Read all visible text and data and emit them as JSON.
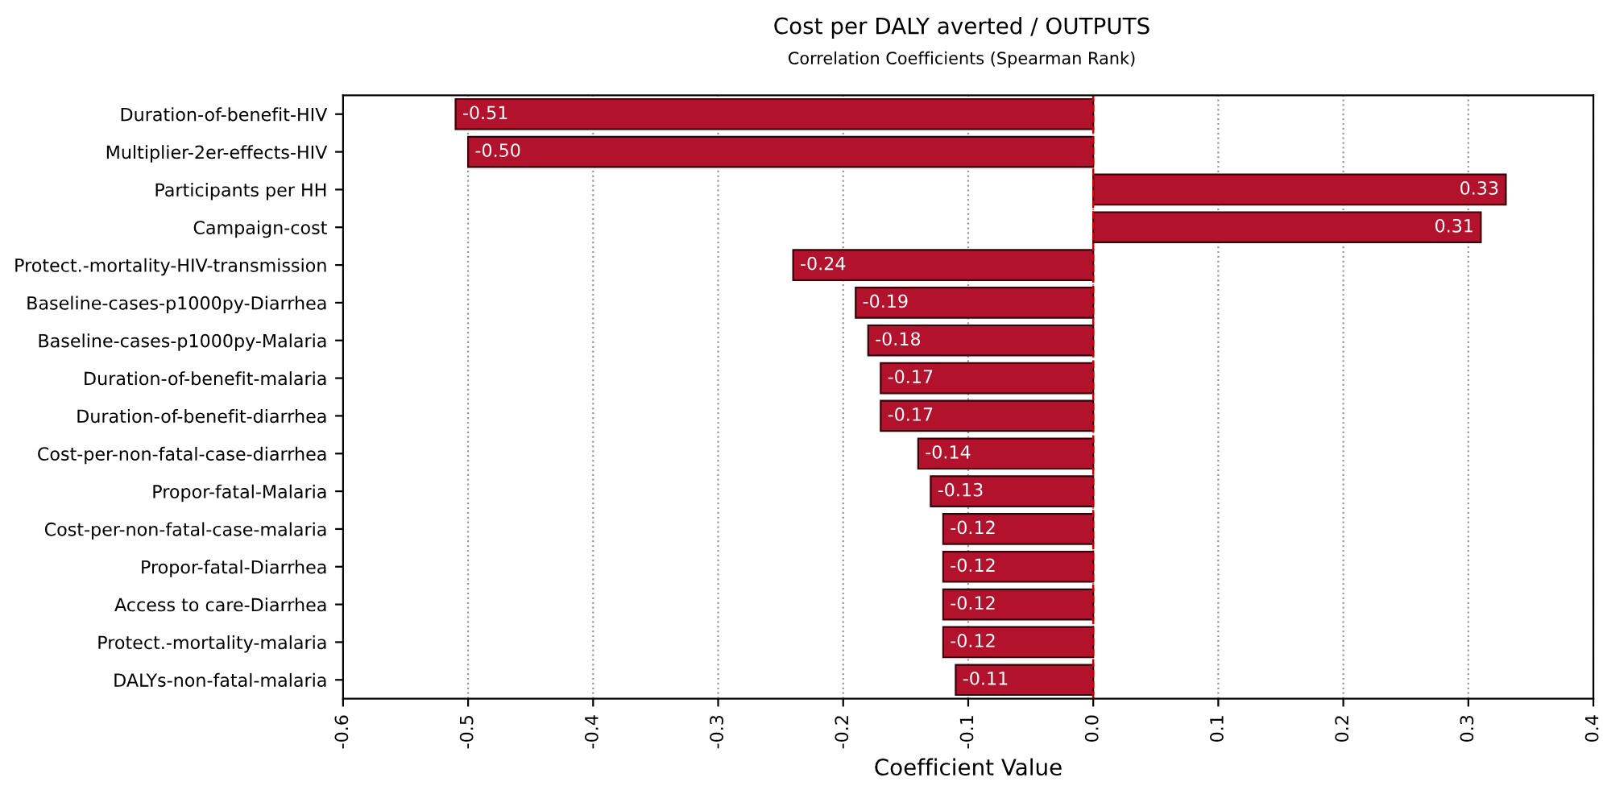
{
  "chart_data": {
    "type": "bar",
    "orientation": "horizontal",
    "title": "Cost per DALY averted / OUTPUTS",
    "subtitle": "Correlation Coefficients (Spearman Rank)",
    "xlabel": "Coefficient Value",
    "categories": [
      "Duration-of-benefit-HIV",
      "Multiplier-2er-effects-HIV",
      "Participants per HH",
      "Campaign-cost",
      "Protect.-mortality-HIV-transmission",
      "Baseline-cases-p1000py-Diarrhea",
      "Baseline-cases-p1000py-Malaria",
      "Duration-of-benefit-malaria",
      "Duration-of-benefit-diarrhea",
      "Cost-per-non-fatal-case-diarrhea",
      "Propor-fatal-Malaria",
      "Cost-per-non-fatal-case-malaria",
      "Propor-fatal-Diarrhea",
      "Access to care-Diarrhea",
      "Protect.-mortality-malaria",
      "DALYs-non-fatal-malaria"
    ],
    "values": [
      -0.51,
      -0.5,
      0.33,
      0.31,
      -0.24,
      -0.19,
      -0.18,
      -0.17,
      -0.17,
      -0.14,
      -0.13,
      -0.12,
      -0.12,
      -0.12,
      -0.12,
      -0.11
    ],
    "value_labels": [
      "-0.51",
      "-0.50",
      "0.33",
      "0.31",
      "-0.24",
      "-0.19",
      "-0.18",
      "-0.17",
      "-0.17",
      "-0.14",
      "-0.13",
      "-0.12",
      "-0.12",
      "-0.12",
      "-0.12",
      "-0.11"
    ],
    "color": "#b3122c",
    "xlim": [
      -0.6,
      0.4
    ],
    "xticks": [
      -0.6,
      -0.5,
      -0.4,
      -0.3,
      -0.2,
      -0.1,
      {
        "value": 0,
        "label": "0.0"
      },
      0.1,
      0.2,
      0.3,
      0.4
    ],
    "ref_lines": [
      {
        "axis": "x",
        "value": 0,
        "color": "#cc0000",
        "line_style": "dashed"
      }
    ],
    "grid": "x",
    "legend": false
  }
}
